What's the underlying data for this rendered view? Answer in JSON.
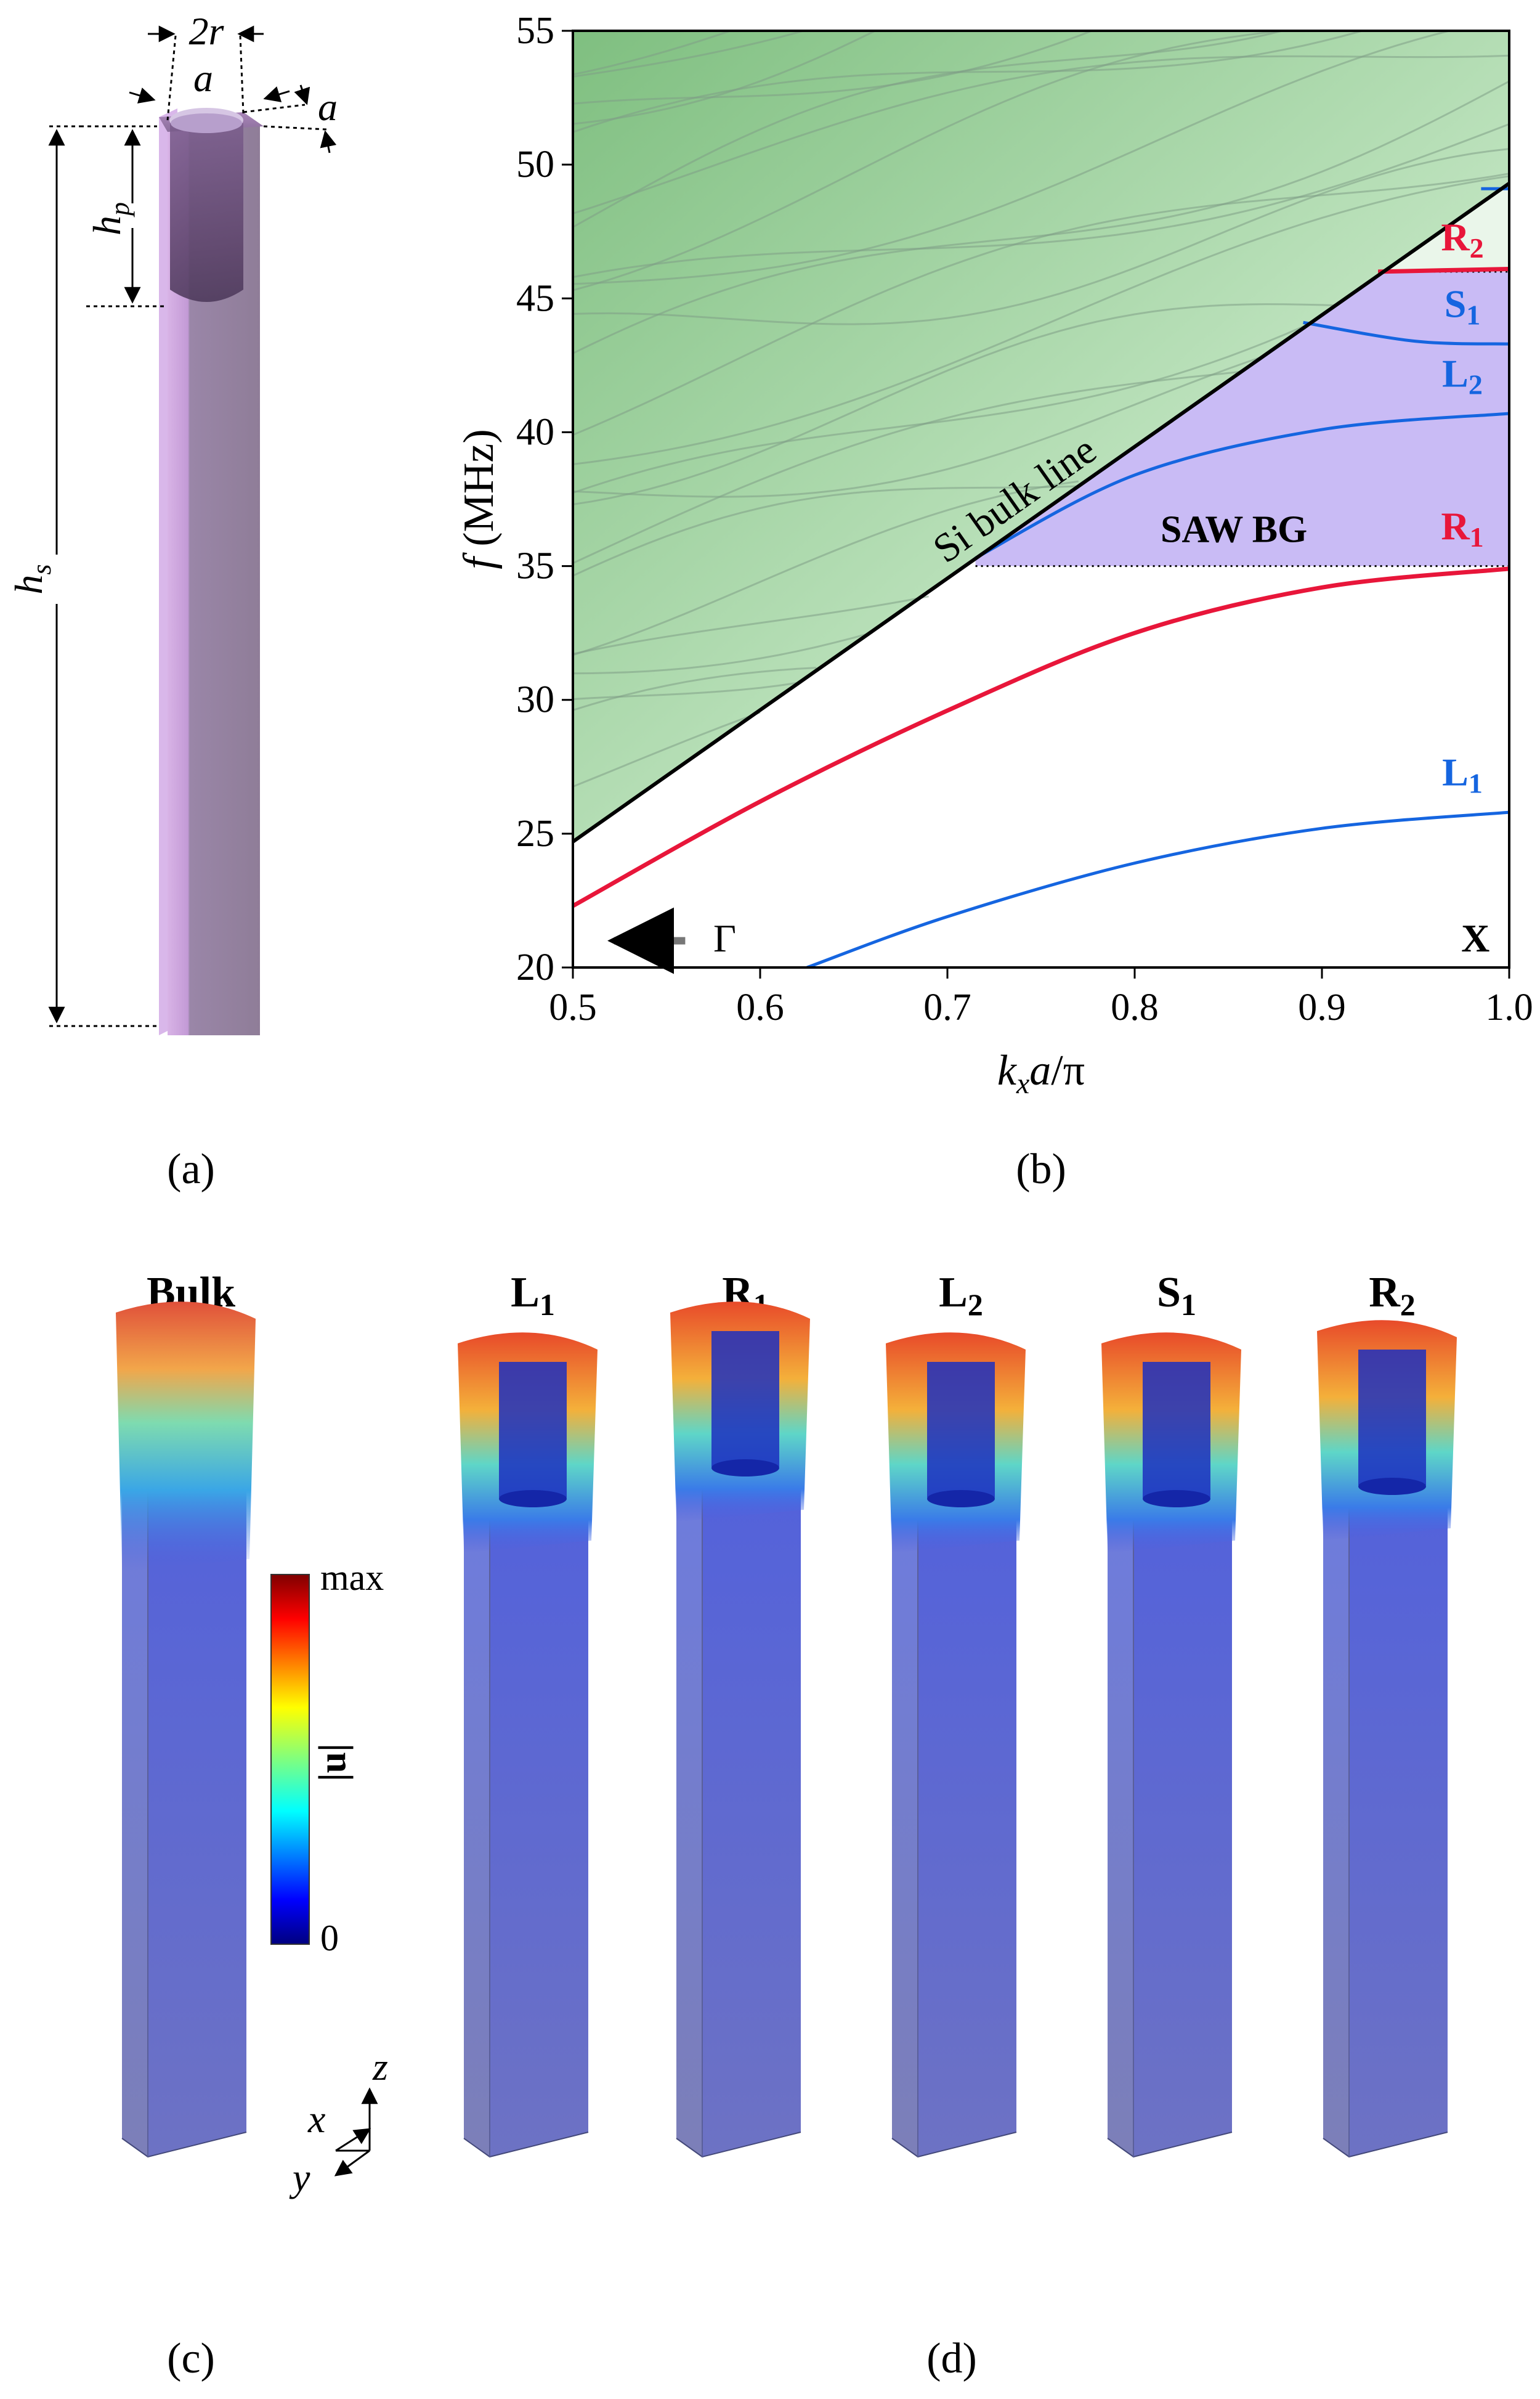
{
  "panel_labels": {
    "a": "(a)",
    "b": "(b)",
    "c": "(c)",
    "d": "(d)"
  },
  "schematic": {
    "dim_2r": "2r",
    "dim_a_top": "a",
    "dim_a_side": "a",
    "dim_hp": "h",
    "dim_hp_sub": "p",
    "dim_hs": "h",
    "dim_hs_sub": "s"
  },
  "colors": {
    "bulk_green": "#9fd3a0",
    "bandgap_purple": "#c8b8f2",
    "rayleigh_red": "#e8163a",
    "love_blue": "#1565e0",
    "bulk_line": "#000000",
    "pillar": "#9a86b0"
  },
  "chart_data": {
    "type": "line",
    "title": "",
    "xlabel_parts": {
      "k": "k",
      "x": "x",
      "rest": "a/π"
    },
    "ylabel_parts": {
      "f": "f",
      "rest": "(MHz)"
    },
    "xlim": [
      0.5,
      1.0
    ],
    "ylim": [
      20,
      55
    ],
    "xticks": [
      0.5,
      0.6,
      0.7,
      0.8,
      0.9,
      1.0
    ],
    "xtick_labels": [
      "0.5",
      "0.6",
      "0.7",
      "0.8",
      "0.9",
      "1.0"
    ],
    "yticks": [
      20,
      25,
      30,
      35,
      40,
      45,
      50,
      55
    ],
    "ytick_labels": [
      "20",
      "25",
      "30",
      "35",
      "40",
      "45",
      "50",
      "55"
    ],
    "bulk_line": {
      "label": "Si bulk line",
      "x": [
        0.5,
        1.0
      ],
      "y": [
        24.7,
        49.3
      ]
    },
    "bandgap": {
      "label": "SAW BG",
      "f_lower": 35.0
    },
    "upper_gap_line": {
      "f": 46.0
    },
    "gamma_label": "Γ",
    "x_point_label": "X",
    "series": [
      {
        "name": "R1",
        "letter": "R",
        "sub": "1",
        "color": "#e8163a",
        "x": [
          0.5,
          0.6,
          0.7,
          0.8,
          0.9,
          1.0
        ],
        "y": [
          22.3,
          26.2,
          29.6,
          32.5,
          34.2,
          34.9
        ]
      },
      {
        "name": "L1",
        "letter": "L",
        "sub": "1",
        "color": "#1565e0",
        "x": [
          0.625,
          0.7,
          0.8,
          0.9,
          1.0
        ],
        "y": [
          20.0,
          21.9,
          23.9,
          25.2,
          25.8
        ]
      },
      {
        "name": "L2",
        "letter": "L",
        "sub": "2",
        "color": "#1565e0",
        "x": [
          0.715,
          0.8,
          0.9,
          1.0
        ],
        "y": [
          35.3,
          38.4,
          40.1,
          40.7
        ]
      },
      {
        "name": "S1",
        "letter": "S",
        "sub": "1",
        "color": "#1565e0",
        "x": [
          0.89,
          0.95,
          1.0
        ],
        "y": [
          44.1,
          43.4,
          43.3
        ]
      },
      {
        "name": "R2",
        "letter": "R",
        "sub": "2",
        "color": "#e8163a",
        "x": [
          0.93,
          1.0
        ],
        "y": [
          46.0,
          46.1
        ]
      }
    ]
  },
  "modes": {
    "colorbar": {
      "max_label": "max",
      "min_label": "0",
      "quantity_label": "|u|"
    },
    "axes": {
      "x": "x",
      "y": "y",
      "z": "z"
    },
    "items": [
      {
        "letter": "Bulk",
        "sub": ""
      },
      {
        "letter": "L",
        "sub": "1"
      },
      {
        "letter": "R",
        "sub": "1"
      },
      {
        "letter": "L",
        "sub": "2"
      },
      {
        "letter": "S",
        "sub": "1"
      },
      {
        "letter": "R",
        "sub": "2"
      }
    ]
  }
}
